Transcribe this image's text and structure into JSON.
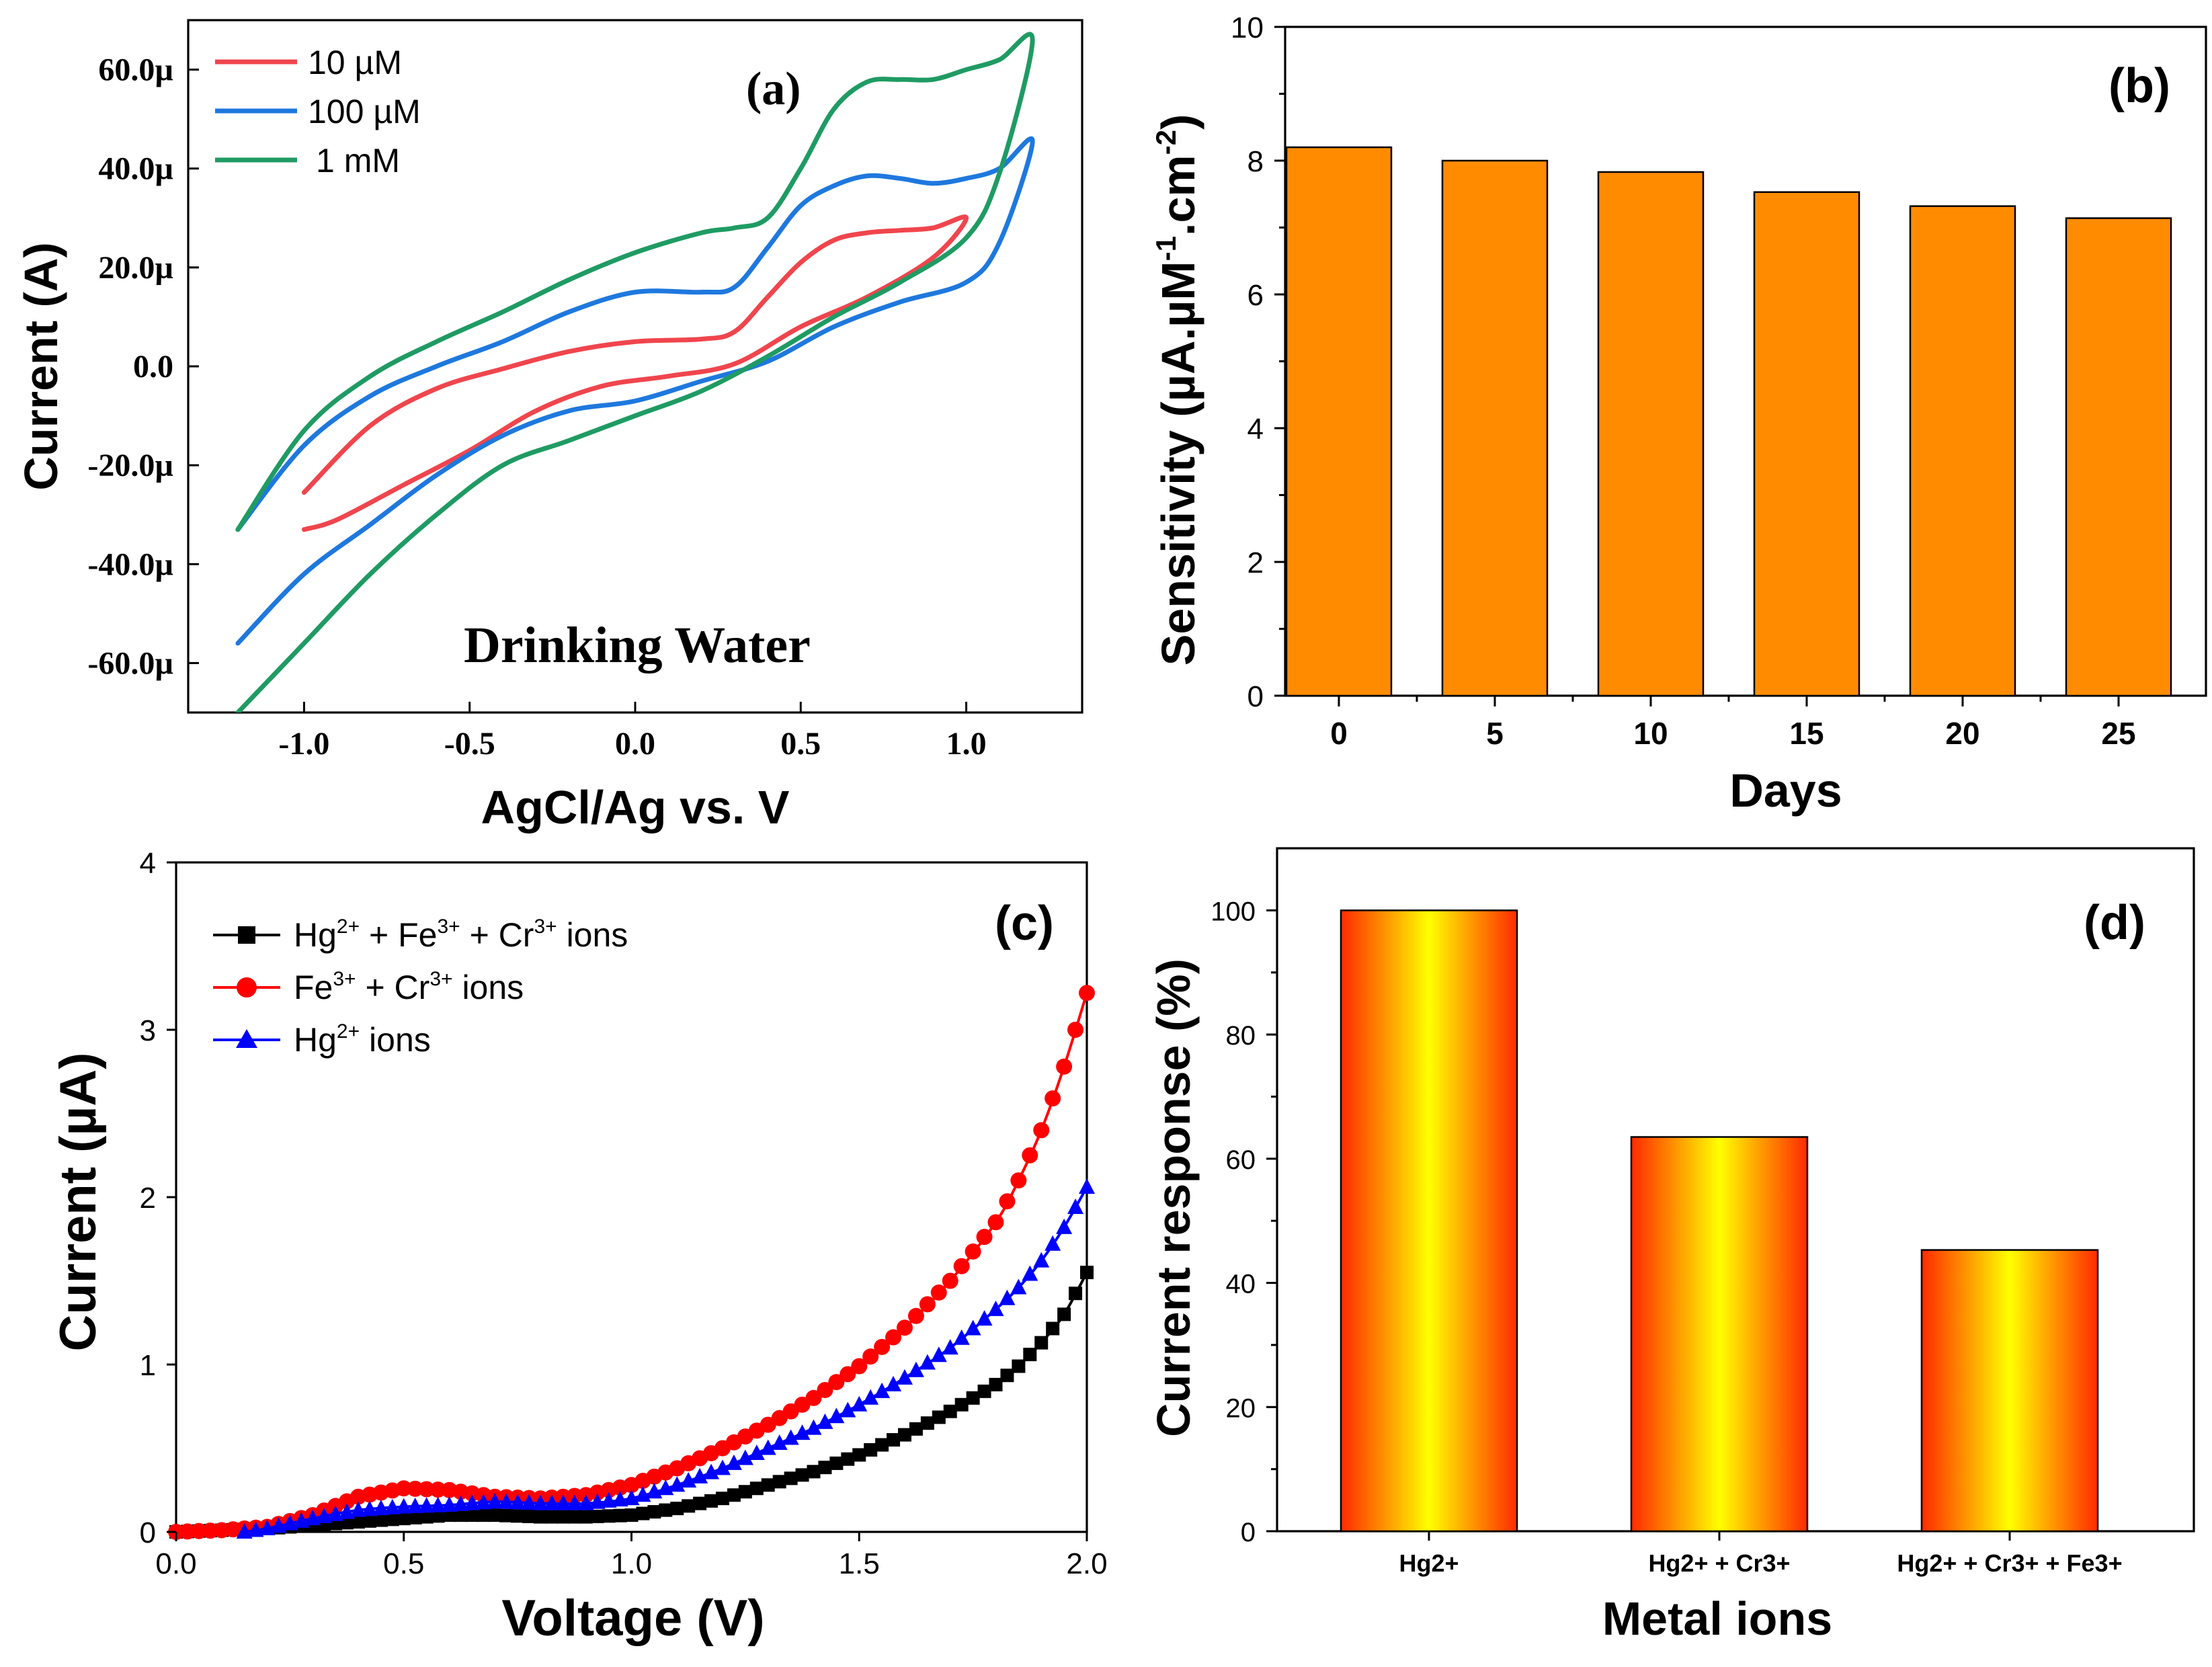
{
  "chart_data": [
    {
      "id": "a",
      "type": "line",
      "panel_label": "(a)",
      "annotation": "Drinking Water",
      "xlabel": "AgCl/Ag vs. V",
      "ylabel": "Current (A)",
      "xlim": [
        -1.35,
        1.35
      ],
      "ylim": [
        -70,
        70
      ],
      "x_ticks": [
        -1.0,
        -0.5,
        0.0,
        0.5,
        1.0
      ],
      "x_tick_labels": [
        "-1.0",
        "-0.5",
        "0.0",
        "0.5",
        "1.0"
      ],
      "y_ticks": [
        60,
        40,
        20,
        0,
        -20,
        -40,
        -60
      ],
      "y_tick_labels": [
        "60.0µ",
        "40.0µ",
        "20.0µ",
        "0.0",
        "-20.0µ",
        "-40.0µ",
        "-60.0µ"
      ],
      "y_unit": "µA",
      "legend_position": "top-left",
      "series": [
        {
          "name": "10 µM",
          "color": "#f0454d",
          "x": [
            -1.0,
            -0.8,
            -0.6,
            -0.4,
            -0.2,
            0.0,
            0.2,
            0.3,
            0.4,
            0.5,
            0.6,
            0.7,
            0.8,
            0.9,
            1.0,
            0.9,
            0.7,
            0.5,
            0.3,
            0.1,
            -0.1,
            -0.3,
            -0.5,
            -0.7,
            -0.9,
            -1.0
          ],
          "y": [
            -25.5,
            -12,
            -4.5,
            -0.5,
            3,
            5,
            5.5,
            7,
            14,
            21,
            25.5,
            27,
            27.5,
            28,
            30,
            22,
            14,
            8,
            0.5,
            -2,
            -4,
            -9,
            -17,
            -24,
            -31,
            -33
          ]
        },
        {
          "name": "100 µM",
          "color": "#1e78de",
          "x": [
            -1.2,
            -1.0,
            -0.8,
            -0.6,
            -0.4,
            -0.2,
            0.0,
            0.2,
            0.3,
            0.4,
            0.5,
            0.6,
            0.7,
            0.8,
            0.9,
            1.0,
            1.1,
            1.2,
            1.1,
            1.0,
            0.8,
            0.6,
            0.4,
            0.2,
            0.0,
            -0.2,
            -0.4,
            -0.6,
            -0.8,
            -1.0,
            -1.2
          ],
          "y": [
            -33,
            -16,
            -6,
            0,
            5,
            11,
            15,
            15,
            16,
            24,
            32.5,
            36.5,
            38.5,
            38,
            37,
            38,
            40,
            45.5,
            25,
            17,
            13,
            8,
            1,
            -3,
            -7,
            -9,
            -14,
            -22,
            -32,
            -42,
            -56
          ]
        },
        {
          "name": "1 mM",
          "color": "#1f9b63",
          "x": [
            -1.2,
            -1.0,
            -0.8,
            -0.6,
            -0.4,
            -0.2,
            0.0,
            0.2,
            0.3,
            0.4,
            0.5,
            0.6,
            0.7,
            0.8,
            0.9,
            1.0,
            1.1,
            1.2,
            1.1,
            1.0,
            0.8,
            0.6,
            0.4,
            0.2,
            0.0,
            -0.2,
            -0.4,
            -0.6,
            -0.8,
            -1.0,
            -1.2
          ],
          "y": [
            -33,
            -13,
            -2,
            5,
            11,
            17.5,
            23,
            27,
            28,
            30,
            40,
            52,
            57.5,
            58,
            58,
            60,
            62,
            66,
            39,
            26,
            17,
            10,
            2,
            -5,
            -10,
            -15,
            -20,
            -30,
            -42,
            -56,
            -70
          ]
        }
      ]
    },
    {
      "id": "b",
      "type": "bar",
      "panel_label": "(b)",
      "xlabel": "Days",
      "ylabel": "Sensitivity (µA.µM-1.cm-2)",
      "ylabel_parts": {
        "base": "Sensitivity (µA.µM",
        "sup1": "-1",
        "mid": ".cm",
        "sup2": "-2",
        "end": ")"
      },
      "categories": [
        "0",
        "5",
        "10",
        "15",
        "20",
        "25"
      ],
      "values": [
        8.2,
        8.0,
        7.83,
        7.53,
        7.32,
        7.14
      ],
      "ylim": [
        0,
        10
      ],
      "y_ticks": [
        0,
        2,
        4,
        6,
        8,
        10
      ],
      "y_tick_labels": [
        "0",
        "2",
        "4",
        "6",
        "8",
        "10"
      ],
      "bar_color": "#ff8c00"
    },
    {
      "id": "c",
      "type": "line",
      "panel_label": "(c)",
      "xlabel": "Voltage (V)",
      "ylabel": "Current (µA)",
      "xlim": [
        0.0,
        2.0
      ],
      "ylim": [
        0,
        4
      ],
      "x_ticks": [
        0.0,
        0.5,
        1.0,
        1.5,
        2.0
      ],
      "x_tick_labels": [
        "0.0",
        "0.5",
        "1.0",
        "1.5",
        "2.0"
      ],
      "y_ticks": [
        0,
        1,
        2,
        3,
        4
      ],
      "y_tick_labels": [
        "0",
        "1",
        "2",
        "3",
        "4"
      ],
      "legend_position": "top-left",
      "series": [
        {
          "name": "Hg2+ + Fe3+ + Cr3+ ions",
          "legend_parts": [
            "Hg",
            "2+",
            " + Fe",
            "3+",
            " + Cr",
            "3+",
            " ions"
          ],
          "color": "#000000",
          "marker": "square",
          "x": [
            0.0,
            0.1,
            0.2,
            0.3,
            0.4,
            0.5,
            0.6,
            0.7,
            0.8,
            0.9,
            1.0,
            1.1,
            1.2,
            1.3,
            1.4,
            1.5,
            1.6,
            1.7,
            1.8,
            1.85,
            1.9,
            1.95,
            2.0
          ],
          "y": [
            0.0,
            0.01,
            0.02,
            0.04,
            0.06,
            0.08,
            0.1,
            0.1,
            0.09,
            0.09,
            0.1,
            0.14,
            0.2,
            0.28,
            0.36,
            0.46,
            0.58,
            0.72,
            0.88,
            0.99,
            1.13,
            1.3,
            1.55
          ]
        },
        {
          "name": "Fe3+ + Cr3+ ions",
          "legend_parts": [
            "Fe",
            "3+",
            " + Cr",
            "3+",
            " ions"
          ],
          "color": "#ff0000",
          "marker": "circle",
          "x": [
            0.0,
            0.1,
            0.2,
            0.3,
            0.4,
            0.5,
            0.6,
            0.7,
            0.8,
            0.9,
            1.0,
            1.1,
            1.2,
            1.3,
            1.4,
            1.5,
            1.6,
            1.7,
            1.8,
            1.85,
            1.9,
            1.95,
            2.0
          ],
          "y": [
            0.0,
            0.01,
            0.03,
            0.1,
            0.21,
            0.26,
            0.25,
            0.21,
            0.2,
            0.22,
            0.28,
            0.38,
            0.5,
            0.64,
            0.8,
            0.99,
            1.22,
            1.5,
            1.85,
            2.1,
            2.4,
            2.78,
            3.22
          ]
        },
        {
          "name": "Hg2+ ions",
          "legend_parts": [
            "Hg",
            "2+",
            " ions"
          ],
          "color": "#0000ff",
          "marker": "triangle",
          "x": [
            0.15,
            0.2,
            0.3,
            0.4,
            0.5,
            0.6,
            0.7,
            0.8,
            0.9,
            1.0,
            1.1,
            1.2,
            1.3,
            1.4,
            1.5,
            1.6,
            1.7,
            1.8,
            1.85,
            1.9,
            1.95,
            2.0
          ],
          "y": [
            0.0,
            0.02,
            0.08,
            0.13,
            0.15,
            0.16,
            0.18,
            0.17,
            0.17,
            0.2,
            0.28,
            0.38,
            0.5,
            0.62,
            0.76,
            0.92,
            1.1,
            1.33,
            1.46,
            1.62,
            1.82,
            2.06
          ]
        }
      ]
    },
    {
      "id": "d",
      "type": "bar",
      "panel_label": "(d)",
      "xlabel": "Metal ions",
      "ylabel": "Current response (%)",
      "categories": [
        "Hg2+",
        "Hg2+ + Cr3+",
        "Hg2+ + Cr3+ + Fe3+"
      ],
      "values": [
        100,
        63.5,
        45.3
      ],
      "ylim": [
        0,
        110
      ],
      "y_ticks": [
        0,
        20,
        40,
        60,
        80,
        100
      ],
      "y_tick_labels": [
        "0",
        "20",
        "40",
        "60",
        "80",
        "100"
      ],
      "bar_gradient": [
        "#ff2a00",
        "#ffff00"
      ]
    }
  ]
}
